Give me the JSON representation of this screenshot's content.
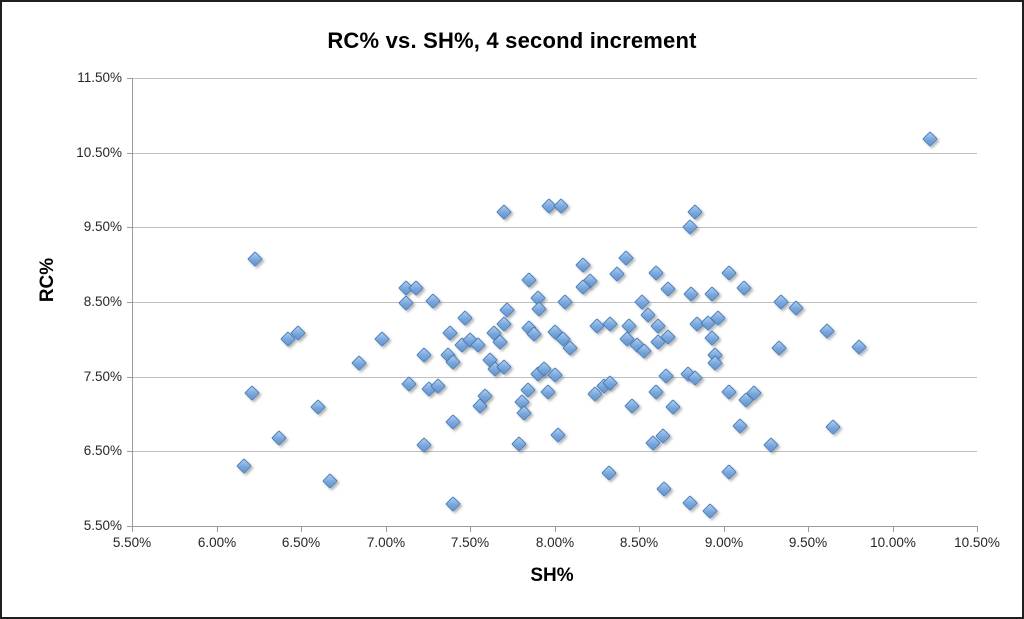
{
  "window": {
    "background": "#ffffff",
    "border_color": "#1f1f1f"
  },
  "chart_data": {
    "type": "scatter",
    "title": "RC% vs. SH%, 4 second increment",
    "xlabel": "SH%",
    "ylabel": "RC%",
    "xlim": [
      5.5,
      10.5
    ],
    "ylim": [
      5.5,
      11.5
    ],
    "x_tick_values": [
      5.5,
      6.0,
      6.5,
      7.0,
      7.5,
      8.0,
      8.5,
      9.0,
      9.5,
      10.0,
      10.5
    ],
    "x_tick_labels": [
      "5.50%",
      "6.00%",
      "6.50%",
      "7.00%",
      "7.50%",
      "8.00%",
      "8.50%",
      "9.00%",
      "9.50%",
      "10.00%",
      "10.50%"
    ],
    "y_tick_values": [
      5.5,
      6.5,
      7.5,
      8.5,
      9.5,
      10.5,
      11.5
    ],
    "y_tick_labels": [
      "5.50%",
      "6.50%",
      "7.50%",
      "8.50%",
      "9.50%",
      "10.50%",
      "11.50%"
    ],
    "grid": "horizontal-only",
    "legend": "none",
    "marker": {
      "shape": "diamond",
      "fill": "#7aa7dc",
      "stroke": "#4a7ebb",
      "shadow": "rgba(110,110,110,0.5)"
    },
    "colors": {
      "gridline": "#bfbfbf",
      "axis": "#9c9c9c",
      "tick_text": "#262626",
      "title_text": "#000000"
    },
    "points": [
      [
        10.22,
        10.68
      ],
      [
        6.23,
        9.08
      ],
      [
        7.7,
        9.7
      ],
      [
        7.97,
        9.79
      ],
      [
        8.04,
        9.79
      ],
      [
        8.83,
        9.7
      ],
      [
        8.8,
        9.5
      ],
      [
        8.17,
        8.99
      ],
      [
        8.42,
        9.09
      ],
      [
        8.37,
        8.88
      ],
      [
        8.21,
        8.78
      ],
      [
        8.17,
        8.7
      ],
      [
        7.85,
        8.8
      ],
      [
        8.6,
        8.89
      ],
      [
        8.67,
        8.68
      ],
      [
        9.03,
        8.89
      ],
      [
        9.12,
        8.69
      ],
      [
        7.12,
        8.69
      ],
      [
        7.18,
        8.69
      ],
      [
        7.12,
        8.49
      ],
      [
        7.28,
        8.51
      ],
      [
        7.9,
        8.56
      ],
      [
        7.91,
        8.41
      ],
      [
        8.06,
        8.5
      ],
      [
        8.52,
        8.5
      ],
      [
        8.55,
        8.33
      ],
      [
        7.72,
        8.4
      ],
      [
        9.34,
        8.5
      ],
      [
        9.43,
        8.42
      ],
      [
        8.81,
        8.61
      ],
      [
        8.93,
        8.61
      ],
      [
        6.42,
        8.0
      ],
      [
        6.48,
        8.08
      ],
      [
        6.98,
        8.0
      ],
      [
        7.47,
        8.29
      ],
      [
        7.38,
        8.08
      ],
      [
        7.64,
        8.08
      ],
      [
        7.68,
        7.97
      ],
      [
        7.7,
        8.21
      ],
      [
        7.85,
        8.15
      ],
      [
        7.88,
        8.07
      ],
      [
        8.0,
        8.1
      ],
      [
        8.05,
        8.0
      ],
      [
        8.09,
        7.89
      ],
      [
        8.25,
        8.18
      ],
      [
        8.33,
        8.21
      ],
      [
        8.44,
        8.18
      ],
      [
        8.61,
        8.18
      ],
      [
        8.43,
        8.0
      ],
      [
        8.49,
        7.93
      ],
      [
        8.53,
        7.85
      ],
      [
        8.61,
        7.97
      ],
      [
        8.67,
        8.03
      ],
      [
        8.84,
        8.2
      ],
      [
        8.91,
        8.22
      ],
      [
        8.97,
        8.29
      ],
      [
        8.93,
        8.02
      ],
      [
        8.95,
        7.79
      ],
      [
        8.95,
        7.69
      ],
      [
        9.61,
        8.11
      ],
      [
        9.8,
        7.9
      ],
      [
        9.33,
        7.88
      ],
      [
        6.84,
        7.68
      ],
      [
        7.23,
        7.79
      ],
      [
        7.37,
        7.79
      ],
      [
        7.4,
        7.7
      ],
      [
        7.45,
        7.93
      ],
      [
        7.5,
        7.99
      ],
      [
        7.55,
        7.92
      ],
      [
        7.62,
        7.72
      ],
      [
        7.65,
        7.6
      ],
      [
        7.7,
        7.63
      ],
      [
        7.9,
        7.54
      ],
      [
        7.94,
        7.61
      ],
      [
        8.0,
        7.52
      ],
      [
        8.29,
        7.37
      ],
      [
        8.33,
        7.42
      ],
      [
        8.66,
        7.51
      ],
      [
        8.79,
        7.53
      ],
      [
        8.83,
        7.48
      ],
      [
        7.14,
        7.4
      ],
      [
        7.26,
        7.33
      ],
      [
        7.31,
        7.38
      ],
      [
        7.56,
        7.11
      ],
      [
        7.59,
        7.24
      ],
      [
        7.84,
        7.32
      ],
      [
        7.96,
        7.3
      ],
      [
        8.24,
        7.27
      ],
      [
        8.46,
        7.11
      ],
      [
        8.6,
        7.3
      ],
      [
        8.7,
        7.1
      ],
      [
        9.03,
        7.3
      ],
      [
        9.13,
        7.19
      ],
      [
        9.18,
        7.28
      ],
      [
        6.21,
        7.28
      ],
      [
        6.6,
        7.1
      ],
      [
        7.81,
        7.16
      ],
      [
        7.82,
        7.02
      ],
      [
        7.4,
        6.89
      ],
      [
        6.37,
        6.68
      ],
      [
        7.23,
        6.58
      ],
      [
        7.79,
        6.6
      ],
      [
        8.02,
        6.72
      ],
      [
        8.58,
        6.61
      ],
      [
        8.64,
        6.7
      ],
      [
        9.1,
        6.84
      ],
      [
        9.28,
        6.59
      ],
      [
        9.65,
        6.82
      ],
      [
        6.16,
        6.3
      ],
      [
        6.67,
        6.1
      ],
      [
        8.32,
        6.21
      ],
      [
        9.03,
        6.22
      ],
      [
        7.4,
        5.8
      ],
      [
        8.65,
        5.99
      ],
      [
        8.8,
        5.81
      ],
      [
        8.92,
        5.7
      ]
    ]
  }
}
